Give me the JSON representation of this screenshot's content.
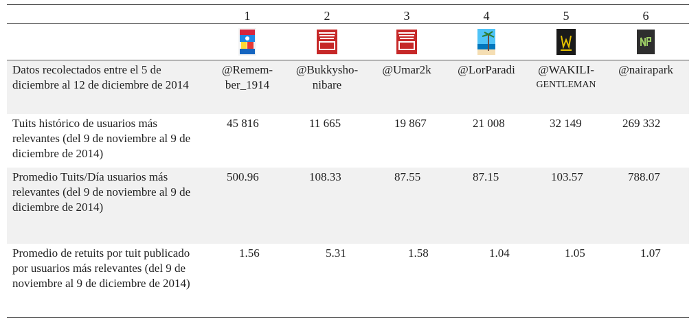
{
  "columns": [
    "1",
    "2",
    "3",
    "4",
    "5",
    "6"
  ],
  "avatars": [
    {
      "name": "remember-avatar",
      "colors": [
        "#d7263d",
        "#1e88e5",
        "#fdd835"
      ]
    },
    {
      "name": "bringbackourgirls-avatar",
      "text_top": "BRING BACK OUR GIRLS",
      "text_main": "NOW"
    },
    {
      "name": "bringbackourgirls-avatar-2",
      "text_top": "BRING BACK OUR GIRLS",
      "text_main": "NOW"
    },
    {
      "name": "beach-avatar"
    },
    {
      "name": "wakili-avatar",
      "text": "W"
    },
    {
      "name": "nairapark-avatar",
      "text": "NP"
    }
  ],
  "rows": [
    {
      "label": "Datos recolectados entre el 5 de diciembre al 12 de diciembre de 2014",
      "handles": [
        [
          "@Remem-",
          "ber_1914"
        ],
        [
          "@Bukkysho-",
          "nibare"
        ],
        [
          "@Umar2k"
        ],
        [
          "@LorParadi"
        ],
        [
          "@WAKILI-",
          "GENTLEMAN"
        ],
        [
          "@nairapark"
        ]
      ]
    },
    {
      "label": "Tuits histórico de usuarios más relevantes (del 9 de noviembre al 9 de diciembre de 2014)",
      "values": [
        "45 816",
        "11 665",
        "19 867",
        "21 008",
        "32 149",
        "269 332"
      ]
    },
    {
      "label": "Promedio Tuits/Día usuarios más relevantes (del 9 de noviembre al 9 de diciembre de 2014)",
      "values": [
        "500.96",
        "108.33",
        "87.55",
        "87.15",
        "103.57",
        "788.07"
      ]
    },
    {
      "label": "Promedio de retuits por tuit publicado por usuarios más relevantes (del 9 de noviembre al 9 de diciembre de 2014)",
      "values": [
        "1.56",
        "5.31",
        "1.58",
        "1.04",
        "1.05",
        "1.07"
      ]
    }
  ]
}
